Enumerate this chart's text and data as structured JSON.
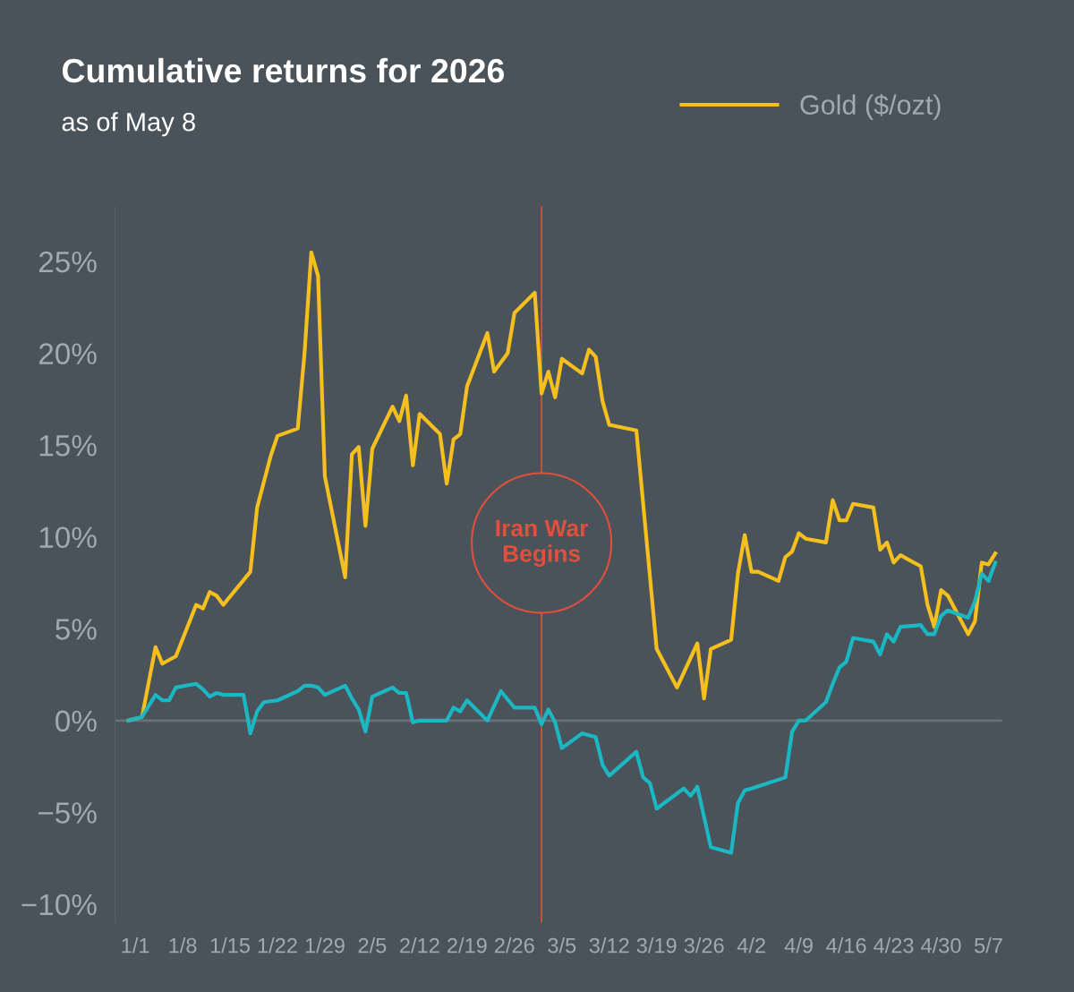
{
  "chart_data": {
    "type": "line",
    "title": "Cumulative returns for 2026",
    "subtitle": "as of May 8",
    "xlim": [
      "2025-12-29",
      "2026-05-09"
    ],
    "xticks": [
      {
        "value": "2026-01-01",
        "label": "1/1"
      },
      {
        "value": "2026-01-08",
        "label": "1/8"
      },
      {
        "value": "2026-01-15",
        "label": "1/15"
      },
      {
        "value": "2026-01-22",
        "label": "1/22"
      },
      {
        "value": "2026-01-29",
        "label": "1/29"
      },
      {
        "value": "2026-02-05",
        "label": "2/5"
      },
      {
        "value": "2026-02-12",
        "label": "2/12"
      },
      {
        "value": "2026-02-19",
        "label": "2/19"
      },
      {
        "value": "2026-02-26",
        "label": "2/26"
      },
      {
        "value": "2026-03-05",
        "label": "3/5"
      },
      {
        "value": "2026-03-12",
        "label": "3/12"
      },
      {
        "value": "2026-03-19",
        "label": "3/19"
      },
      {
        "value": "2026-03-26",
        "label": "3/26"
      },
      {
        "value": "2026-04-02",
        "label": "4/2"
      },
      {
        "value": "2026-04-09",
        "label": "4/9"
      },
      {
        "value": "2026-04-16",
        "label": "4/16"
      },
      {
        "value": "2026-04-23",
        "label": "4/23"
      },
      {
        "value": "2026-04-30",
        "label": "4/30"
      },
      {
        "value": "2026-05-07",
        "label": "5/7"
      }
    ],
    "ylim": [
      -11,
      28
    ],
    "yticks": [
      {
        "value": -10,
        "label": "−10%"
      },
      {
        "value": -5,
        "label": "−5%"
      },
      {
        "value": 0,
        "label": "0%"
      },
      {
        "value": 5,
        "label": "5%"
      },
      {
        "value": 10,
        "label": "10%"
      },
      {
        "value": 15,
        "label": "15%"
      },
      {
        "value": 20,
        "label": "20%"
      },
      {
        "value": 25,
        "label": "25%"
      }
    ],
    "grid": false,
    "legend": "top right",
    "marker": "none",
    "line_style": "solid",
    "ref_lines": [
      {
        "axis": "y",
        "value": 0,
        "color": "#697079"
      },
      {
        "axis": "x",
        "value": "2026-03-02",
        "label": "Iran War\nBegins",
        "color": "#e0503c"
      }
    ],
    "series": [
      {
        "name": "Gold ($/ozt)",
        "color": "#f5c01e",
        "x": [
          "2025-12-31",
          "2026-01-02",
          "2026-01-04",
          "2026-01-05",
          "2026-01-07",
          "2026-01-10",
          "2026-01-11",
          "2026-01-12",
          "2026-01-13",
          "2026-01-14",
          "2026-01-18",
          "2026-01-19",
          "2026-01-21",
          "2026-01-22",
          "2026-01-25",
          "2026-01-26",
          "2026-01-27",
          "2026-01-28",
          "2026-01-29",
          "2026-02-01",
          "2026-02-02",
          "2026-02-03",
          "2026-02-04",
          "2026-02-05",
          "2026-02-08",
          "2026-02-09",
          "2026-02-10",
          "2026-02-11",
          "2026-02-12",
          "2026-02-15",
          "2026-02-16",
          "2026-02-17",
          "2026-02-18",
          "2026-02-19",
          "2026-02-22",
          "2026-02-23",
          "2026-02-25",
          "2026-02-26",
          "2026-03-01",
          "2026-03-02",
          "2026-03-03",
          "2026-03-04",
          "2026-03-05",
          "2026-03-08",
          "2026-03-09",
          "2026-03-10",
          "2026-03-11",
          "2026-03-12",
          "2026-03-16",
          "2026-03-19",
          "2026-03-22",
          "2026-03-24",
          "2026-03-25",
          "2026-03-26",
          "2026-03-27",
          "2026-03-30",
          "2026-03-31",
          "2026-04-01",
          "2026-04-02",
          "2026-04-03",
          "2026-04-06",
          "2026-04-07",
          "2026-04-08",
          "2026-04-09",
          "2026-04-10",
          "2026-04-13",
          "2026-04-14",
          "2026-04-15",
          "2026-04-16",
          "2026-04-17",
          "2026-04-20",
          "2026-04-21",
          "2026-04-22",
          "2026-04-23",
          "2026-04-24",
          "2026-04-27",
          "2026-04-28",
          "2026-04-29",
          "2026-04-30",
          "2026-05-01",
          "2026-05-04",
          "2026-05-05",
          "2026-05-06",
          "2026-05-07",
          "2026-05-08"
        ],
        "values": [
          0,
          0.2,
          4.0,
          3.1,
          3.5,
          6.3,
          6.1,
          7.0,
          6.8,
          6.3,
          8.1,
          11.6,
          14.4,
          15.5,
          15.9,
          20.0,
          25.5,
          24.2,
          13.3,
          7.8,
          14.5,
          14.9,
          10.6,
          14.8,
          17.1,
          16.3,
          17.7,
          13.9,
          16.7,
          15.6,
          12.9,
          15.3,
          15.6,
          18.2,
          21.1,
          19.0,
          20.0,
          22.2,
          23.3,
          17.8,
          19.0,
          17.6,
          19.7,
          18.9,
          20.2,
          19.8,
          17.4,
          16.1,
          15.8,
          3.9,
          1.8,
          3.4,
          4.2,
          1.2,
          3.9,
          4.4,
          8.0,
          10.1,
          8.1,
          8.1,
          7.6,
          8.9,
          9.2,
          10.2,
          9.9,
          9.7,
          12.0,
          10.9,
          10.9,
          11.8,
          11.6,
          9.3,
          9.7,
          8.6,
          9.0,
          8.4,
          6.3,
          5.1,
          7.1,
          6.8,
          4.7,
          5.4,
          8.6,
          8.5,
          9.1
        ]
      },
      {
        "color": "#1bb8c4",
        "x": [
          "2025-12-31",
          "2026-01-02",
          "2026-01-03",
          "2026-01-04",
          "2026-01-05",
          "2026-01-06",
          "2026-01-07",
          "2026-01-10",
          "2026-01-11",
          "2026-01-12",
          "2026-01-13",
          "2026-01-14",
          "2026-01-17",
          "2026-01-18",
          "2026-01-19",
          "2026-01-20",
          "2026-01-22",
          "2026-01-25",
          "2026-01-26",
          "2026-01-27",
          "2026-01-28",
          "2026-01-29",
          "2026-02-01",
          "2026-02-02",
          "2026-02-03",
          "2026-02-04",
          "2026-02-05",
          "2026-02-08",
          "2026-02-09",
          "2026-02-10",
          "2026-02-11",
          "2026-02-12",
          "2026-02-16",
          "2026-02-17",
          "2026-02-18",
          "2026-02-19",
          "2026-02-22",
          "2026-02-24",
          "2026-02-26",
          "2026-03-01",
          "2026-03-02",
          "2026-03-03",
          "2026-03-04",
          "2026-03-05",
          "2026-03-08",
          "2026-03-09",
          "2026-03-10",
          "2026-03-11",
          "2026-03-12",
          "2026-03-16",
          "2026-03-17",
          "2026-03-18",
          "2026-03-19",
          "2026-03-23",
          "2026-03-24",
          "2026-03-25",
          "2026-03-27",
          "2026-03-30",
          "2026-03-31",
          "2026-04-01",
          "2026-04-02",
          "2026-04-07",
          "2026-04-08",
          "2026-04-09",
          "2026-04-10",
          "2026-04-13",
          "2026-04-14",
          "2026-04-15",
          "2026-04-16",
          "2026-04-17",
          "2026-04-20",
          "2026-04-21",
          "2026-04-22",
          "2026-04-23",
          "2026-04-24",
          "2026-04-27",
          "2026-04-28",
          "2026-04-29",
          "2026-04-30",
          "2026-05-01",
          "2026-05-04",
          "2026-05-05",
          "2026-05-06",
          "2026-05-07",
          "2026-05-08"
        ],
        "values": [
          0,
          0.2,
          0.8,
          1.4,
          1.1,
          1.1,
          1.8,
          2.0,
          1.7,
          1.3,
          1.5,
          1.4,
          1.4,
          -0.7,
          0.5,
          1.0,
          1.1,
          1.6,
          1.9,
          1.9,
          1.8,
          1.4,
          1.9,
          1.2,
          0.6,
          -0.6,
          1.3,
          1.8,
          1.5,
          1.5,
          -0.1,
          0.0,
          0.0,
          0.7,
          0.5,
          1.1,
          0.0,
          1.6,
          0.7,
          0.7,
          -0.2,
          0.6,
          -0.1,
          -1.5,
          -0.7,
          -0.8,
          -0.9,
          -2.4,
          -3.0,
          -1.7,
          -3.1,
          -3.4,
          -4.8,
          -3.7,
          -4.1,
          -3.6,
          -6.9,
          -7.2,
          -4.5,
          -3.8,
          -3.7,
          -3.1,
          -0.6,
          0.0,
          0.0,
          1.0,
          2.0,
          2.9,
          3.2,
          4.5,
          4.3,
          3.6,
          4.7,
          4.3,
          5.1,
          5.2,
          4.7,
          4.7,
          5.7,
          6.0,
          5.6,
          6.5,
          8.0,
          7.6,
          8.6
        ]
      }
    ]
  }
}
